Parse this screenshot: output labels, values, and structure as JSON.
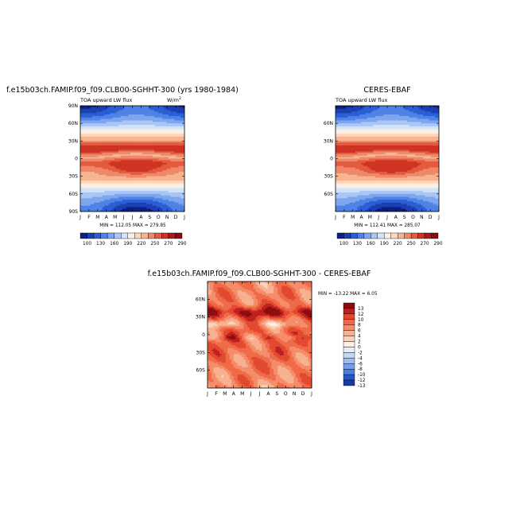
{
  "chart_data": [
    {
      "type": "heatmap",
      "title": "f.e15b03ch.FAMIP.f09_f09.CLB00-SGHHT-300 (yrs 1980-1984)",
      "subtitle_left": "TOA upward LW flux",
      "subtitle_right_base": "W/m",
      "subtitle_right_exp": "2",
      "x_ticks": [
        "J",
        "F",
        "M",
        "A",
        "M",
        "J",
        "J",
        "A",
        "S",
        "O",
        "N",
        "D",
        "J"
      ],
      "y_ticks": [
        "90N",
        "60N",
        "30N",
        "0",
        "30S",
        "60S",
        "90S"
      ],
      "ylim": [
        -90,
        90
      ],
      "stats": "MIN = 112.05   MAX = 279.85",
      "colorbar_labels": [
        "100",
        "130",
        "160",
        "190",
        "220",
        "250",
        "270",
        "290"
      ],
      "colorbar_colors": [
        "#0b1f86",
        "#1c3fb0",
        "#2a5ed6",
        "#4f82e6",
        "#7ea6ef",
        "#a9c6f5",
        "#d3e3f8",
        "#fbf0e2",
        "#fbd8bd",
        "#f7b48f",
        "#f0876a",
        "#e45a3c",
        "#cf3324",
        "#b01818",
        "#8a0d0d"
      ],
      "levels": [
        100,
        115,
        130,
        145,
        160,
        175,
        190,
        205,
        220,
        235,
        250,
        260,
        270,
        280,
        290
      ]
    },
    {
      "type": "heatmap",
      "title": "CERES-EBAF",
      "subtitle_left": "TOA upward LW flux",
      "x_ticks": [
        "J",
        "F",
        "M",
        "A",
        "M",
        "J",
        "J",
        "A",
        "S",
        "O",
        "N",
        "D",
        "J"
      ],
      "y_ticks": [
        "60N",
        "30N",
        "0",
        "30S",
        "60S"
      ],
      "ylim": [
        -90,
        90
      ],
      "stats": "MIN = 112.41   MAX = 285.07",
      "colorbar_labels": [
        "100",
        "130",
        "160",
        "190",
        "220",
        "250",
        "270",
        "290"
      ]
    },
    {
      "type": "heatmap",
      "title": "f.e15b03ch.FAMIP.f09_f09.CLB00-SGHHT-300 - CERES-EBAF",
      "x_ticks": [
        "J",
        "F",
        "M",
        "A",
        "M",
        "J",
        "J",
        "A",
        "S",
        "O",
        "N",
        "D",
        "J"
      ],
      "y_ticks": [
        "60N",
        "30N",
        "0",
        "30S",
        "60S"
      ],
      "ylim": [
        -90,
        90
      ],
      "stats": "MIN = -13.22 MAX =    6.05",
      "colorbar_labels": [
        "13",
        "12",
        "10",
        "8",
        "6",
        "4",
        "2",
        "0",
        "-2",
        "-4",
        "-6",
        "-8",
        "-10",
        "-12",
        "-13"
      ],
      "colorbar_colors": [
        "#8a0d0d",
        "#c01f1f",
        "#e2492f",
        "#f06a48",
        "#f48d6a",
        "#f8b190",
        "#fbd3ba",
        "#fdf0e6",
        "#e5eefb",
        "#c3d7f5",
        "#9dbdf0",
        "#739fe8",
        "#4a7fdd",
        "#2557c6",
        "#1a37a6",
        "#0f1f84"
      ]
    }
  ]
}
